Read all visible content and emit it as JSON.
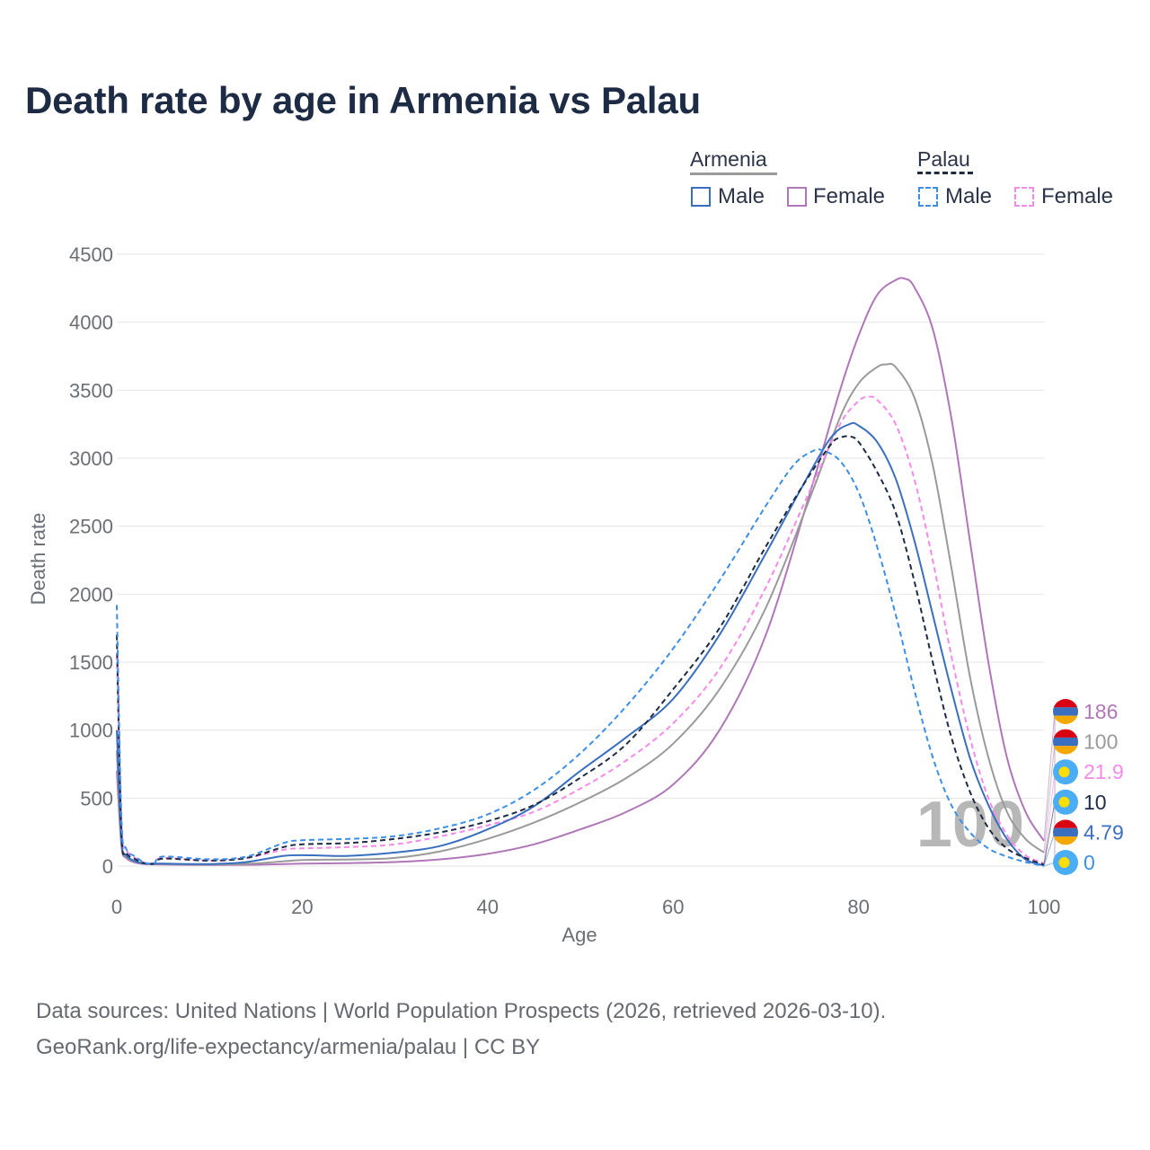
{
  "title": "Death rate by age in Armenia vs Palau",
  "legend": {
    "group1": "Armenia",
    "group2": "Palau",
    "male": "Male",
    "female": "Female"
  },
  "source_line1": "Data sources: United Nations | World Population Prospects (2026, retrieved 2026-03-10).",
  "source_line2": "GeoRank.org/life-expectancy/armenia/palau | CC BY",
  "watermark": "100",
  "colors": {
    "armenia_male": "#3a6fbf",
    "armenia_female": "#b077b8",
    "armenia_total": "#9a9a9a",
    "palau_male": "#3d8fe6",
    "palau_female": "#f58ae8",
    "palau_total": "#1d2b45",
    "grid": "#e6e6e6"
  },
  "chart_data": {
    "type": "line",
    "title": "Death rate by age in Armenia vs Palau",
    "xlabel": "Age",
    "ylabel": "Death rate",
    "xlim": [
      0,
      100
    ],
    "ylim": [
      0,
      4500
    ],
    "xticks": [
      0,
      20,
      40,
      60,
      80,
      100
    ],
    "yticks": [
      0,
      500,
      1000,
      1500,
      2000,
      2500,
      3000,
      3500,
      4000,
      4500
    ],
    "grid": true,
    "legend_position": "top-right",
    "series": [
      {
        "name": "Armenia Female",
        "color": "#b077b8",
        "dash": false,
        "x": [
          0,
          0.5,
          1,
          2,
          3,
          5,
          10,
          15,
          20,
          25,
          30,
          35,
          40,
          45,
          50,
          55,
          60,
          65,
          70,
          75,
          78,
          80,
          82,
          84,
          85,
          86,
          88,
          90,
          92,
          94,
          96,
          98,
          100
        ],
        "y": [
          700,
          150,
          60,
          25,
          15,
          12,
          8,
          10,
          18,
          22,
          30,
          50,
          90,
          160,
          270,
          400,
          600,
          1000,
          1700,
          2800,
          3500,
          3900,
          4200,
          4310,
          4320,
          4260,
          3950,
          3300,
          2400,
          1500,
          800,
          400,
          186
        ]
      },
      {
        "name": "Armenia Total",
        "color": "#9a9a9a",
        "dash": false,
        "x": [
          0,
          0.5,
          1,
          2,
          3,
          5,
          10,
          15,
          20,
          25,
          30,
          35,
          40,
          45,
          50,
          55,
          60,
          65,
          70,
          75,
          78,
          80,
          82,
          83,
          84,
          86,
          88,
          90,
          92,
          94,
          96,
          98,
          100
        ],
        "y": [
          850,
          170,
          70,
          30,
          18,
          15,
          12,
          20,
          45,
          48,
          60,
          110,
          200,
          320,
          470,
          650,
          900,
          1300,
          1900,
          2750,
          3300,
          3550,
          3670,
          3690,
          3670,
          3450,
          2950,
          2200,
          1400,
          800,
          400,
          200,
          100
        ]
      },
      {
        "name": "Palau Female",
        "color": "#f58ae8",
        "dash": true,
        "x": [
          0,
          0.5,
          1,
          2,
          3,
          4,
          5,
          10,
          14,
          18,
          20,
          25,
          30,
          35,
          40,
          45,
          50,
          55,
          60,
          65,
          70,
          75,
          78,
          80,
          81,
          82,
          84,
          86,
          88,
          90,
          92,
          94,
          96,
          98,
          100
        ],
        "y": [
          1550,
          300,
          120,
          60,
          25,
          20,
          60,
          40,
          60,
          120,
          130,
          140,
          160,
          220,
          300,
          400,
          570,
          780,
          1050,
          1450,
          2050,
          2800,
          3250,
          3420,
          3450,
          3430,
          3250,
          2850,
          2250,
          1550,
          950,
          500,
          230,
          80,
          21.9
        ]
      },
      {
        "name": "Armenia Male",
        "color": "#3a6fbf",
        "dash": false,
        "x": [
          0,
          0.5,
          1,
          2,
          3,
          5,
          10,
          14,
          18,
          20,
          22,
          25,
          30,
          35,
          40,
          45,
          50,
          55,
          60,
          65,
          70,
          74,
          77,
          79,
          80,
          82,
          84,
          86,
          88,
          90,
          92,
          94,
          96,
          98,
          100
        ],
        "y": [
          1000,
          190,
          80,
          35,
          20,
          18,
          15,
          30,
          75,
          80,
          78,
          75,
          100,
          150,
          270,
          440,
          700,
          950,
          1230,
          1700,
          2300,
          2800,
          3150,
          3250,
          3240,
          3120,
          2850,
          2400,
          1850,
          1300,
          800,
          450,
          200,
          50,
          4.79
        ]
      },
      {
        "name": "Palau Total",
        "color": "#1d2b45",
        "dash": true,
        "x": [
          0,
          0.5,
          1,
          2,
          3,
          4,
          5,
          10,
          14,
          18,
          20,
          25,
          30,
          35,
          40,
          45,
          50,
          55,
          60,
          65,
          70,
          74,
          77,
          78,
          79,
          80,
          82,
          84,
          86,
          88,
          90,
          92,
          94,
          96,
          98,
          100
        ],
        "y": [
          1700,
          250,
          100,
          50,
          20,
          18,
          55,
          40,
          60,
          140,
          160,
          170,
          200,
          250,
          330,
          450,
          650,
          900,
          1300,
          1750,
          2350,
          2800,
          3100,
          3150,
          3160,
          3120,
          2900,
          2600,
          2100,
          1500,
          950,
          550,
          280,
          130,
          60,
          10
        ]
      },
      {
        "name": "Palau Male",
        "color": "#3d8fe6",
        "dash": true,
        "x": [
          0,
          0.5,
          1,
          2,
          3,
          4,
          5,
          10,
          14,
          18,
          20,
          25,
          30,
          35,
          40,
          45,
          50,
          55,
          60,
          65,
          70,
          73,
          75,
          76,
          78,
          80,
          82,
          84,
          86,
          88,
          90,
          92,
          94,
          96,
          98,
          100
        ],
        "y": [
          1920,
          350,
          130,
          70,
          25,
          18,
          70,
          50,
          70,
          170,
          190,
          200,
          220,
          280,
          380,
          560,
          830,
          1180,
          1600,
          2100,
          2650,
          2950,
          3050,
          3060,
          2980,
          2750,
          2350,
          1850,
          1300,
          800,
          450,
          250,
          130,
          70,
          30,
          0
        ]
      }
    ],
    "end_labels": [
      {
        "text": "186",
        "value": 186,
        "color": "#b077b8",
        "flag": "armenia"
      },
      {
        "text": "100",
        "value": 100,
        "color": "#9a9a9a",
        "flag": "armenia"
      },
      {
        "text": "21.9",
        "value": 21.9,
        "color": "#f58ae8",
        "flag": "palau"
      },
      {
        "text": "10",
        "value": 10,
        "color": "#1d2b45",
        "flag": "palau"
      },
      {
        "text": "4.79",
        "value": 4.79,
        "color": "#3a6fbf",
        "flag": "armenia"
      },
      {
        "text": "0",
        "value": 0,
        "color": "#3d8fe6",
        "flag": "palau"
      }
    ]
  }
}
